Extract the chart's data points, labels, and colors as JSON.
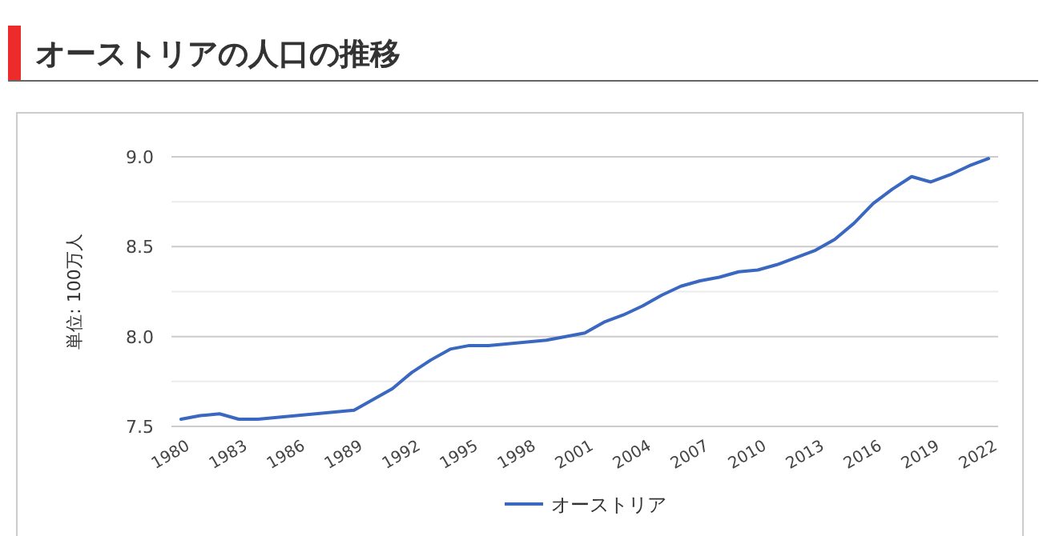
{
  "chart_data": {
    "type": "line",
    "title": "オーストリアの人口の推移",
    "ylabel": "単位: 100万人",
    "x": [
      1980,
      1981,
      1982,
      1983,
      1984,
      1985,
      1986,
      1987,
      1988,
      1989,
      1990,
      1991,
      1992,
      1993,
      1994,
      1995,
      1996,
      1997,
      1998,
      1999,
      2000,
      2001,
      2002,
      2003,
      2004,
      2005,
      2006,
      2007,
      2008,
      2009,
      2010,
      2011,
      2012,
      2013,
      2014,
      2015,
      2016,
      2017,
      2018,
      2019,
      2020,
      2021,
      2022
    ],
    "series": [
      {
        "name": "オーストリア",
        "color": "#3a67c0",
        "values": [
          7.54,
          7.56,
          7.57,
          7.54,
          7.54,
          7.55,
          7.56,
          7.57,
          7.58,
          7.59,
          7.65,
          7.71,
          7.8,
          7.87,
          7.93,
          7.95,
          7.95,
          7.96,
          7.97,
          7.98,
          8.0,
          8.02,
          8.08,
          8.12,
          8.17,
          8.23,
          8.28,
          8.31,
          8.33,
          8.36,
          8.37,
          8.4,
          8.44,
          8.48,
          8.54,
          8.63,
          8.74,
          8.82,
          8.89,
          8.86,
          8.9,
          8.95,
          8.99
        ]
      }
    ],
    "xlim": [
      1979.5,
      2022.5
    ],
    "ylim": [
      7.5,
      9.0
    ],
    "xticks": [
      1980,
      1983,
      1986,
      1989,
      1992,
      1995,
      1998,
      2001,
      2004,
      2007,
      2010,
      2013,
      2016,
      2019,
      2022
    ],
    "yticks": [
      7.5,
      {
        "value": 7.75,
        "label": null
      },
      {
        "value": 8,
        "label": "8.0"
      },
      {
        "value": 8.25,
        "label": null
      },
      8.5,
      {
        "value": 8.75,
        "label": null
      },
      {
        "value": 9,
        "label": "9.0"
      }
    ],
    "grid": "y",
    "legend": "bottom",
    "marker": "none",
    "line_style": "solid"
  }
}
